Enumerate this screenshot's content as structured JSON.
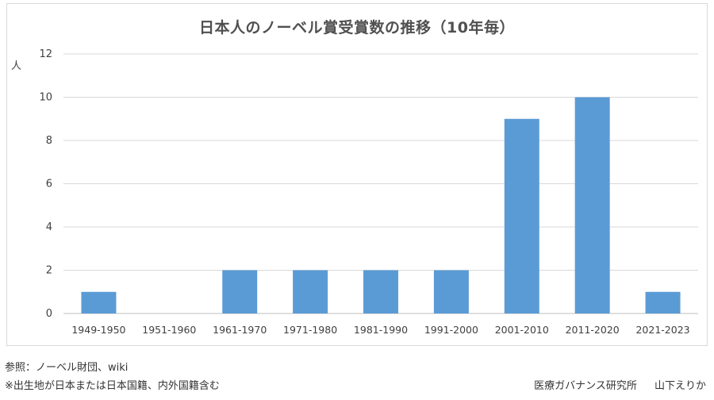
{
  "chart_data": {
    "type": "bar",
    "title": "日本人のノーベル賞受賞数の推移（10年毎）",
    "ylabel": "人",
    "xlabel": "",
    "categories": [
      "1949-1950",
      "1951-1960",
      "1961-1970",
      "1971-1980",
      "1981-1990",
      "1991-2000",
      "2001-2010",
      "2011-2020",
      "2021-2023"
    ],
    "values": [
      1,
      0,
      2,
      2,
      2,
      2,
      9,
      10,
      1
    ],
    "ylim": [
      0,
      12
    ],
    "yticks": [
      0,
      2,
      4,
      6,
      8,
      10,
      12
    ],
    "grid": true,
    "legend": "none",
    "bar_color": "#5b9bd5"
  },
  "footer": {
    "source": "参照：ノーベル財団、wiki",
    "note": "※出生地が日本または日本国籍、内外国籍含む",
    "organization": "医療ガバナンス研究所",
    "author": "山下えりか"
  }
}
